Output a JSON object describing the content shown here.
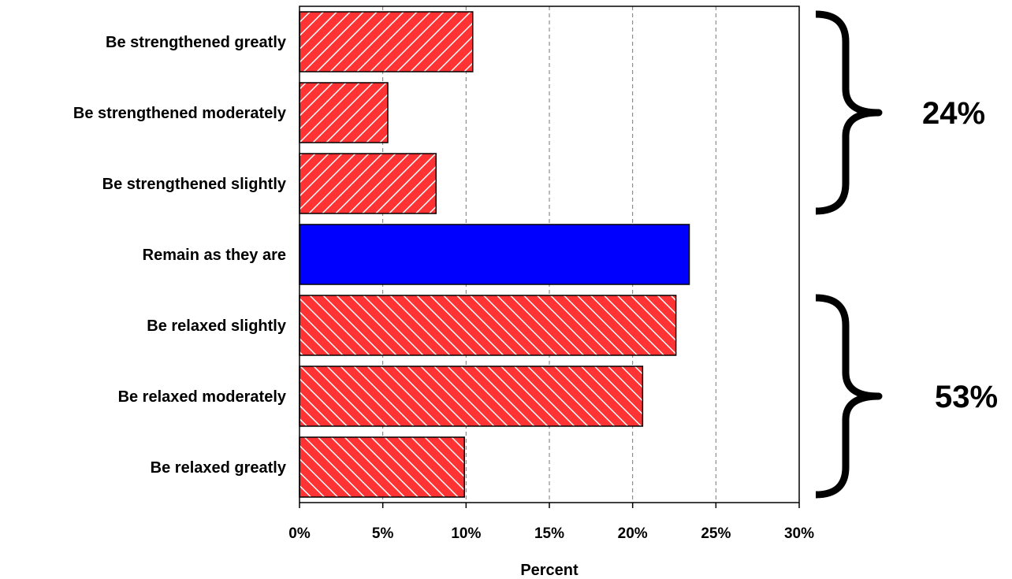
{
  "chart_data": {
    "type": "bar",
    "orientation": "horizontal",
    "categories": [
      "Be strengthened greatly",
      "Be strengthened moderately",
      "Be strengthened slightly",
      "Remain as they are",
      "Be relaxed slightly",
      "Be relaxed moderately",
      "Be relaxed greatly"
    ],
    "values": [
      10.4,
      5.3,
      8.2,
      23.4,
      22.6,
      20.6,
      9.9
    ],
    "bar_styles": [
      "hatch-back",
      "hatch-back",
      "hatch-back",
      "solid",
      "hatch-forward",
      "hatch-forward",
      "hatch-forward"
    ],
    "xlabel": "Percent",
    "xlim": [
      0,
      30
    ],
    "xticks": [
      "0%",
      "5%",
      "10%",
      "15%",
      "20%",
      "25%",
      "30%"
    ],
    "grid": "vertical-dashed",
    "colors": {
      "hatched": "#ff3333",
      "solid": "#0000ff",
      "hatch_lines": "#ffffff"
    },
    "annotations": [
      {
        "text": "24%",
        "spans": [
          "Be strengthened greatly",
          "Be strengthened slightly"
        ]
      },
      {
        "text": "53%",
        "spans": [
          "Be relaxed slightly",
          "Be relaxed greatly"
        ]
      }
    ]
  }
}
